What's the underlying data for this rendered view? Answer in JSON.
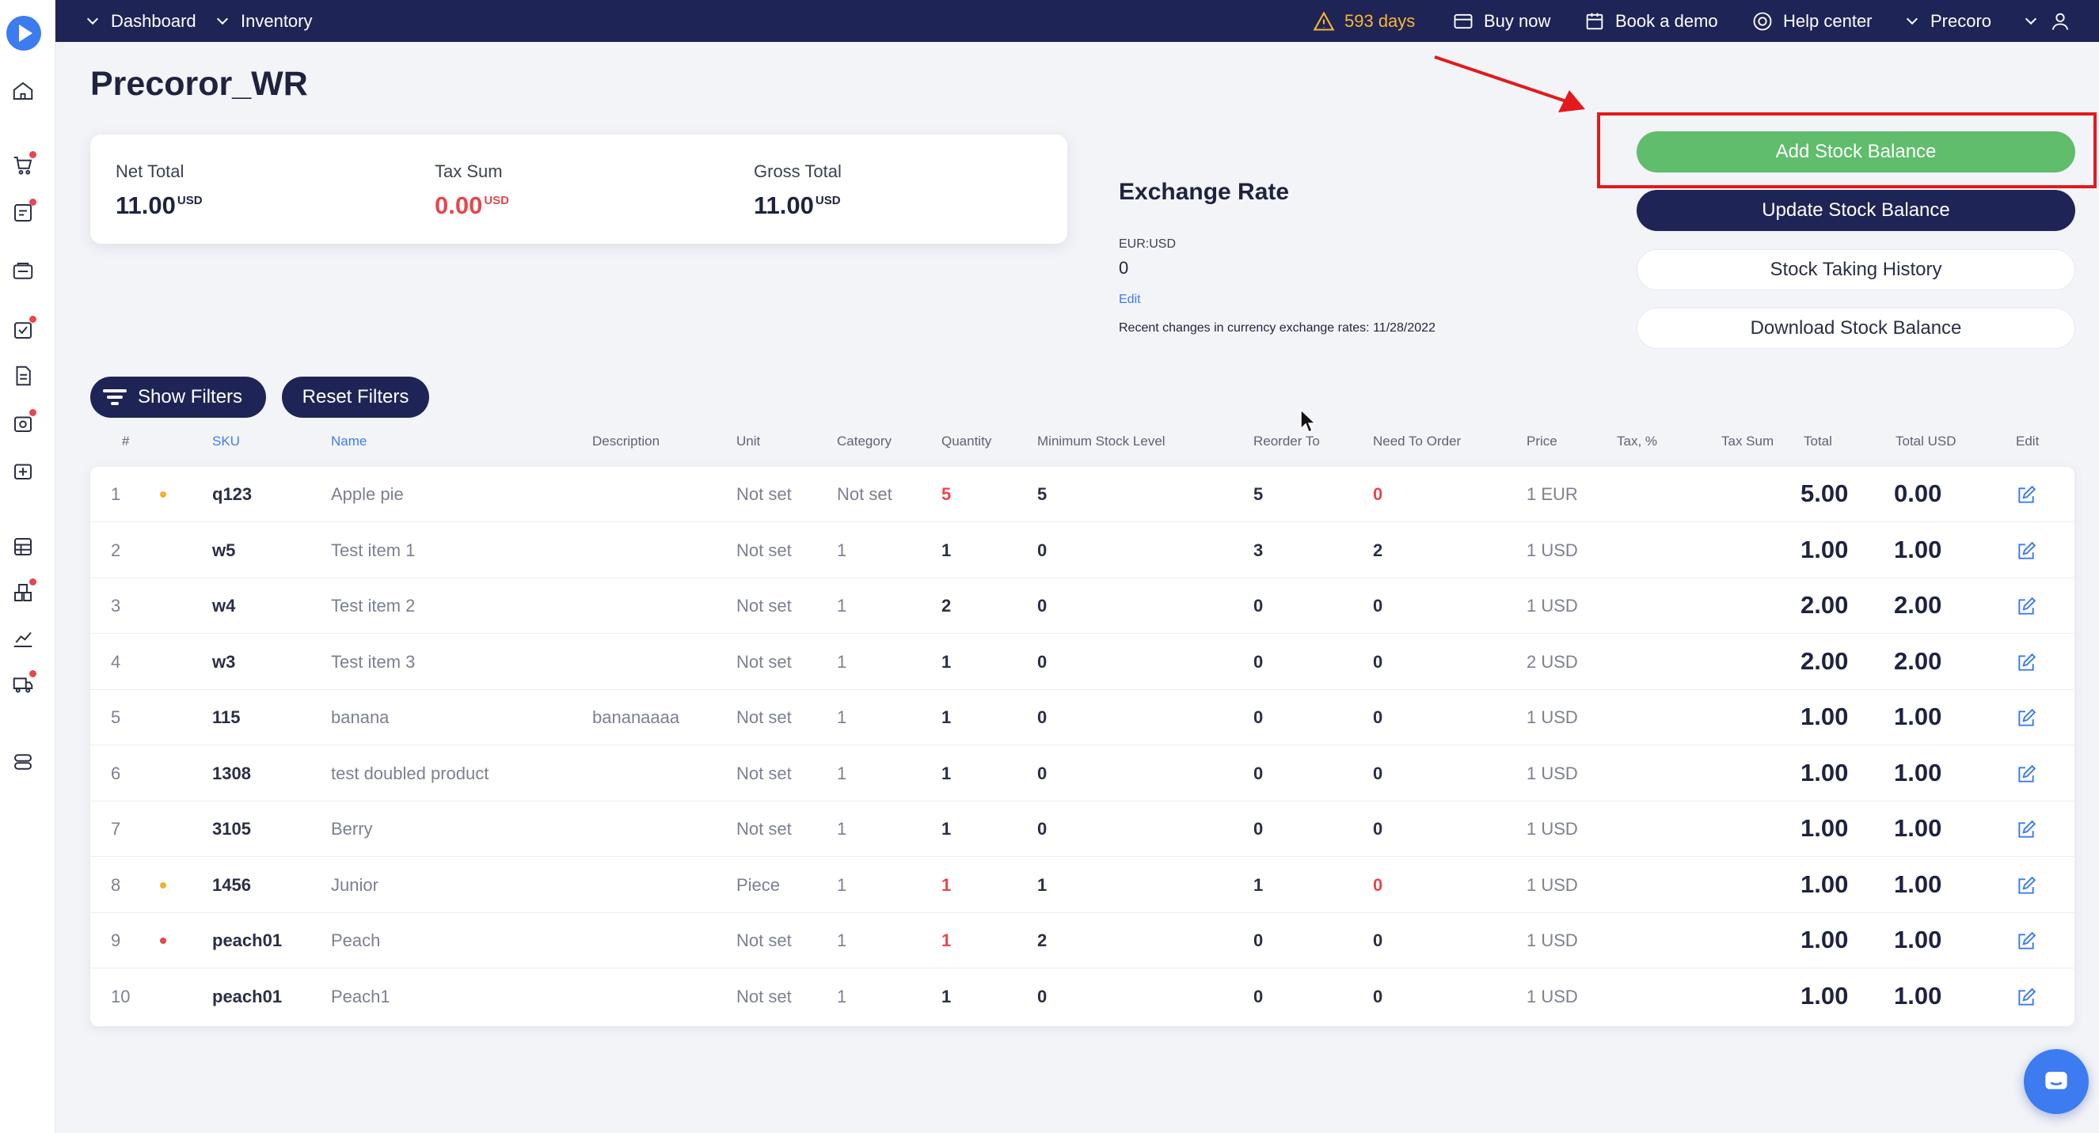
{
  "topbar": {
    "breadcrumbs": [
      "Dashboard",
      "Inventory"
    ],
    "days_warning": "593 days",
    "buy_now": "Buy now",
    "book_demo": "Book a demo",
    "help_center": "Help center",
    "company": "Precoro"
  },
  "page": {
    "title": "Precoror_WR"
  },
  "totals": {
    "net_label": "Net Total",
    "net_value": "11.00",
    "net_currency": "USD",
    "tax_label": "Tax Sum",
    "tax_value": "0.00",
    "tax_currency": "USD",
    "gross_label": "Gross Total",
    "gross_value": "11.00",
    "gross_currency": "USD"
  },
  "exchange": {
    "title": "Exchange Rate",
    "pair": "EUR:USD",
    "value": "0",
    "edit": "Edit",
    "recent_label": "Recent changes in currency exchange rates:",
    "recent_date": "11/28/2022"
  },
  "actions": {
    "add": "Add Stock Balance",
    "update": "Update Stock Balance",
    "history": "Stock Taking History",
    "download": "Download Stock Balance"
  },
  "filters": {
    "show": "Show Filters",
    "reset": "Reset Filters"
  },
  "table": {
    "headers": [
      "#",
      "SKU",
      "Name",
      "Description",
      "Unit",
      "Category",
      "Quantity",
      "Minimum Stock Level",
      "Reorder To",
      "Need To Order",
      "Price",
      "Tax, %",
      "Tax Sum",
      "Total",
      "Total USD",
      "Edit"
    ],
    "rows": [
      {
        "n": "1",
        "dot": "#f2b233",
        "sku": "q123",
        "name": "Apple pie",
        "desc": "",
        "unit": "Not set",
        "cat": "Not set",
        "qty": "5",
        "qty_red": true,
        "min": "5",
        "reorder": "5",
        "need": "0",
        "need_red": true,
        "price": "1 EUR",
        "total": "5.00",
        "total_usd": "0.00"
      },
      {
        "n": "2",
        "dot": "",
        "sku": "w5",
        "name": "Test item 1",
        "desc": "",
        "unit": "Not set",
        "cat": "1",
        "qty": "1",
        "qty_red": false,
        "min": "0",
        "reorder": "3",
        "need": "2",
        "need_red": false,
        "price": "1 USD",
        "total": "1.00",
        "total_usd": "1.00"
      },
      {
        "n": "3",
        "dot": "",
        "sku": "w4",
        "name": "Test item 2",
        "desc": "",
        "unit": "Not set",
        "cat": "1",
        "qty": "2",
        "qty_red": false,
        "min": "0",
        "reorder": "0",
        "need": "0",
        "need_red": false,
        "price": "1 USD",
        "total": "2.00",
        "total_usd": "2.00"
      },
      {
        "n": "4",
        "dot": "",
        "sku": "w3",
        "name": "Test item 3",
        "desc": "",
        "unit": "Not set",
        "cat": "1",
        "qty": "1",
        "qty_red": false,
        "min": "0",
        "reorder": "0",
        "need": "0",
        "need_red": false,
        "price": "2 USD",
        "total": "2.00",
        "total_usd": "2.00"
      },
      {
        "n": "5",
        "dot": "",
        "sku": "115",
        "name": "banana",
        "desc": "bananaaaa",
        "unit": "Not set",
        "cat": "1",
        "qty": "1",
        "qty_red": false,
        "min": "0",
        "reorder": "0",
        "need": "0",
        "need_red": false,
        "price": "1 USD",
        "total": "1.00",
        "total_usd": "1.00"
      },
      {
        "n": "6",
        "dot": "",
        "sku": "1308",
        "name": "test doubled product",
        "desc": "",
        "unit": "Not set",
        "cat": "1",
        "qty": "1",
        "qty_red": false,
        "min": "0",
        "reorder": "0",
        "need": "0",
        "need_red": false,
        "price": "1 USD",
        "total": "1.00",
        "total_usd": "1.00"
      },
      {
        "n": "7",
        "dot": "",
        "sku": "3105",
        "name": "Berry",
        "desc": "",
        "unit": "Not set",
        "cat": "1",
        "qty": "1",
        "qty_red": false,
        "min": "0",
        "reorder": "0",
        "need": "0",
        "need_red": false,
        "price": "1 USD",
        "total": "1.00",
        "total_usd": "1.00"
      },
      {
        "n": "8",
        "dot": "#f2b233",
        "sku": "1456",
        "name": "Junior",
        "desc": "",
        "unit": "Piece",
        "cat": "1",
        "qty": "1",
        "qty_red": true,
        "min": "1",
        "reorder": "1",
        "need": "0",
        "need_red": true,
        "price": "1 USD",
        "total": "1.00",
        "total_usd": "1.00"
      },
      {
        "n": "9",
        "dot": "#e5484d",
        "sku": "peach01",
        "name": "Peach",
        "desc": "",
        "unit": "Not set",
        "cat": "1",
        "qty": "1",
        "qty_red": true,
        "min": "2",
        "reorder": "0",
        "need": "0",
        "need_red": false,
        "price": "1 USD",
        "total": "1.00",
        "total_usd": "1.00"
      },
      {
        "n": "10",
        "dot": "",
        "sku": "peach01",
        "name": "Peach1",
        "desc": "",
        "unit": "Not set",
        "cat": "1",
        "qty": "1",
        "qty_red": false,
        "min": "0",
        "reorder": "0",
        "need": "0",
        "need_red": false,
        "price": "1 USD",
        "total": "1.00",
        "total_usd": "1.00"
      }
    ]
  },
  "colors": {
    "navy": "#1f2456",
    "green": "#5fbd6b",
    "red": "#e5484d",
    "blue": "#3d7bf0",
    "warning": "#f7b733"
  }
}
